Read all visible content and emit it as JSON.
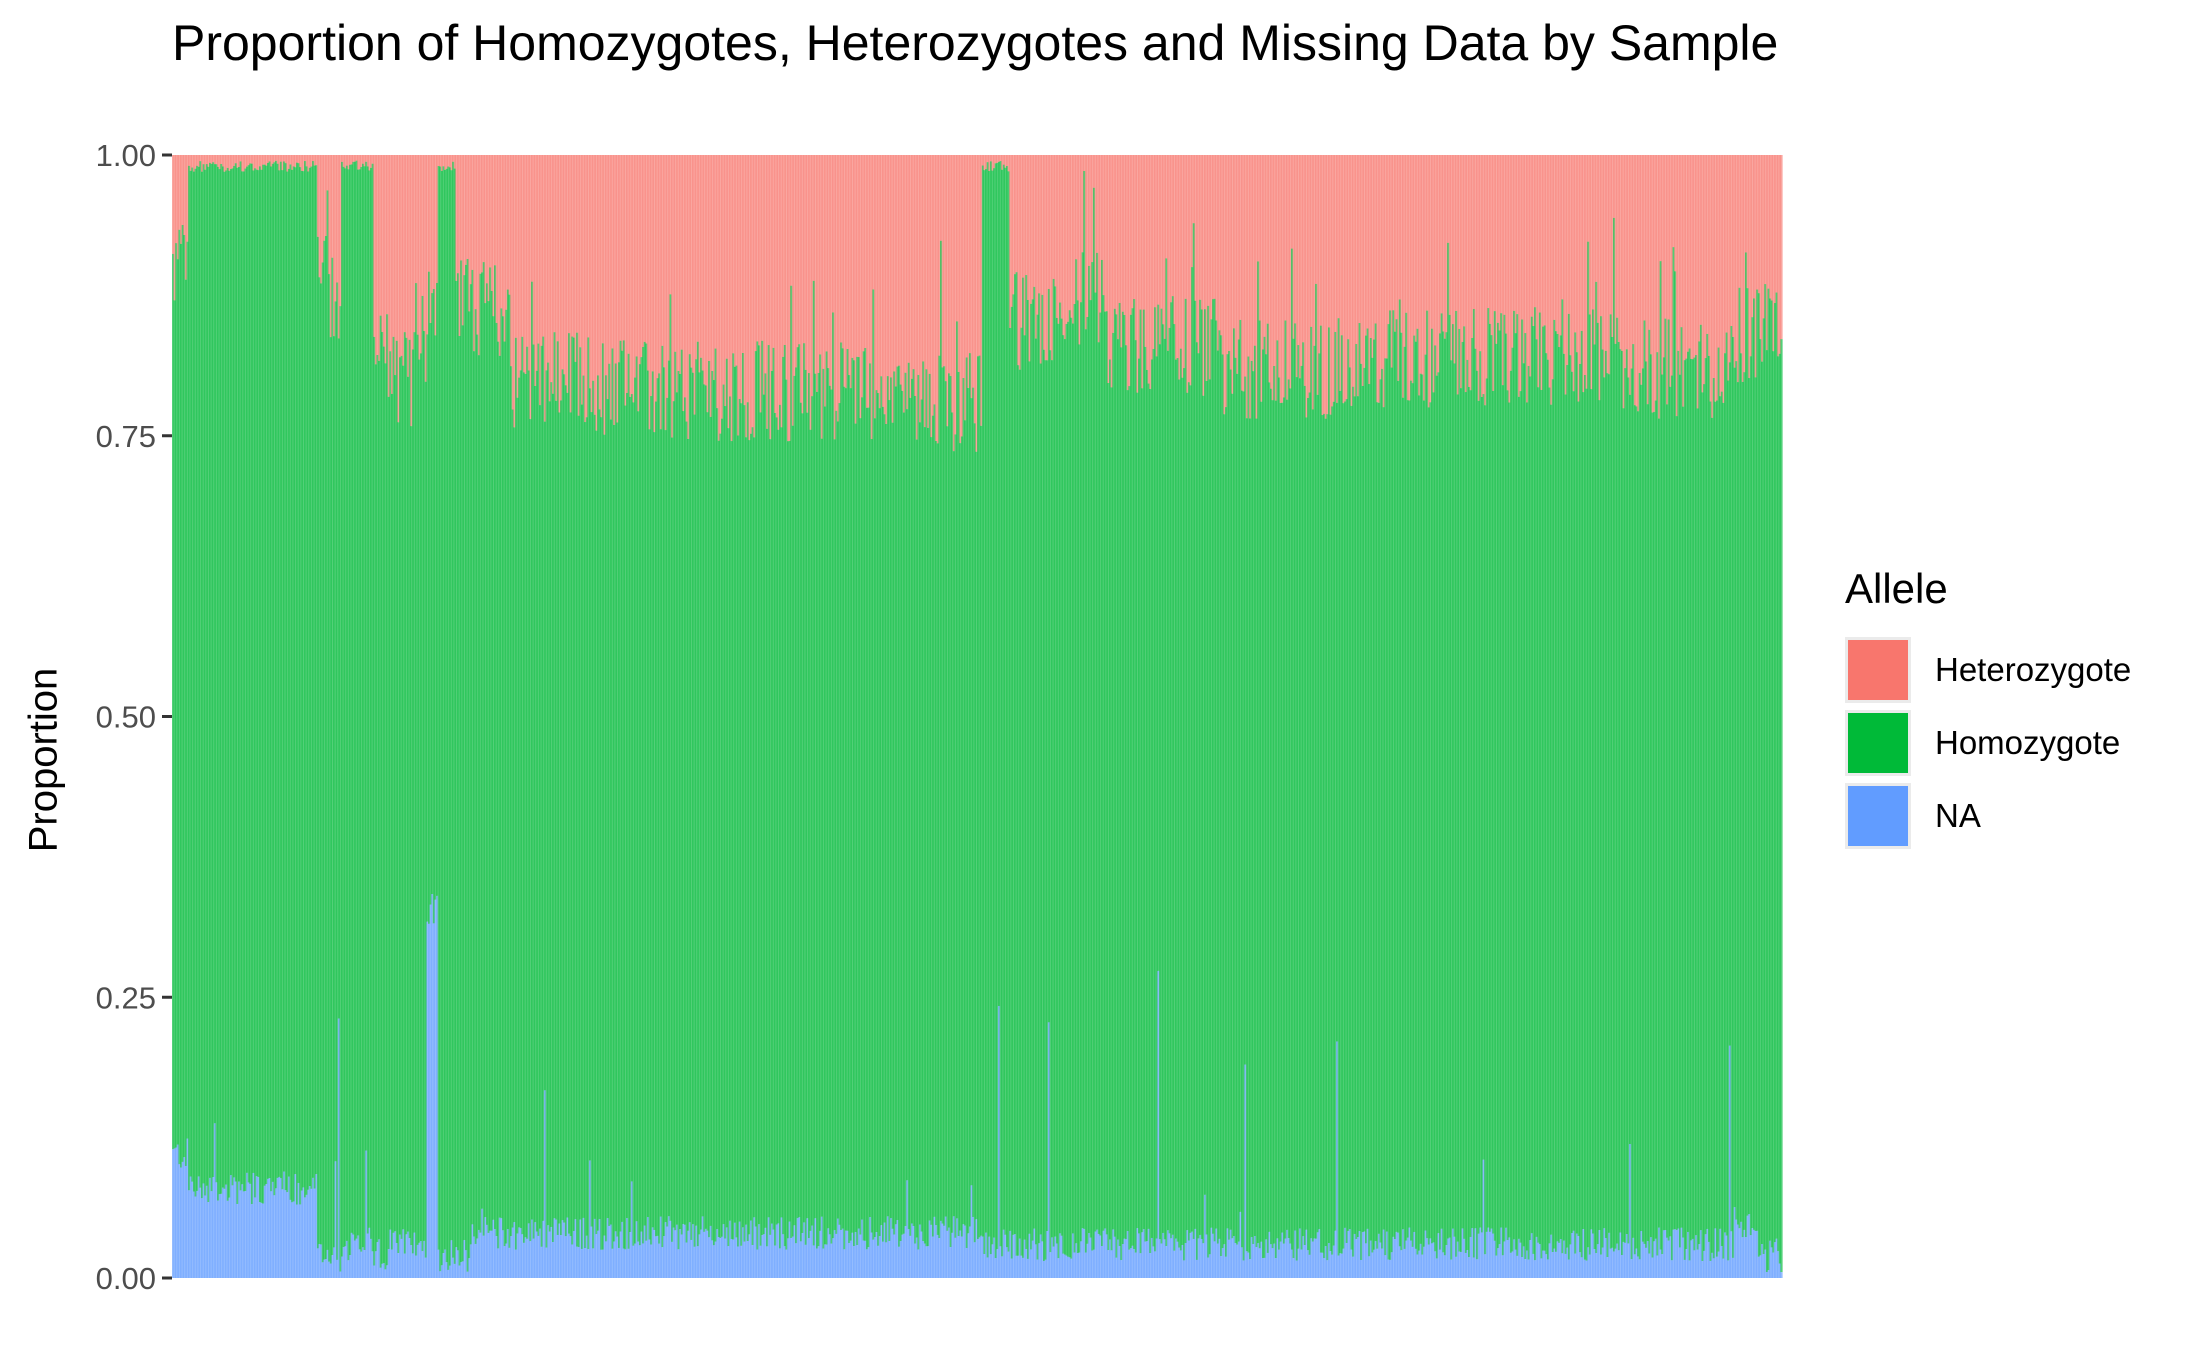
{
  "chart_data": {
    "type": "bar",
    "stacked": true,
    "title": "Proportion of Homozygotes, Heterozygotes and Missing Data by Sample",
    "xlabel": "",
    "ylabel": "Proportion",
    "ylim": [
      0,
      1
    ],
    "yticks": [
      "0.00",
      "0.25",
      "0.50",
      "0.75",
      "1.00"
    ],
    "x_tick_labels_visible": false,
    "grid": false,
    "legend": {
      "title": "Allele",
      "placement": "right",
      "entries": [
        {
          "name": "Heterozygote",
          "color": "#F8766D"
        },
        {
          "name": "Homozygote",
          "color": "#00BA38"
        },
        {
          "name": "NA",
          "color": "#619CFF"
        }
      ]
    },
    "sample_count_approx": 1000,
    "series_profile_note": "Per-sample stacked proportions summarized as segments over sample index range [0,1]; each segment gives [start, end, NA proportion, NA+Homozygote cumulative proportion]. Heterozygote fills to 1.0.",
    "segments": [
      [
        0.0,
        0.01,
        0.11,
        0.9
      ],
      [
        0.01,
        0.09,
        0.08,
        0.99
      ],
      [
        0.09,
        0.087,
        0.1,
        0.99
      ],
      [
        0.087,
        0.088,
        0.1,
        1.0
      ],
      [
        0.088,
        0.098,
        0.02,
        0.93
      ],
      [
        0.098,
        0.105,
        0.02,
        0.88
      ],
      [
        0.105,
        0.125,
        0.03,
        0.99
      ],
      [
        0.125,
        0.135,
        0.02,
        0.82
      ],
      [
        0.135,
        0.15,
        0.03,
        0.8
      ],
      [
        0.15,
        0.158,
        0.03,
        0.84
      ],
      [
        0.158,
        0.165,
        0.33,
        0.88
      ],
      [
        0.165,
        0.176,
        0.02,
        0.99
      ],
      [
        0.176,
        0.185,
        0.02,
        0.88
      ],
      [
        0.185,
        0.21,
        0.04,
        0.86
      ],
      [
        0.21,
        0.26,
        0.04,
        0.8
      ],
      [
        0.26,
        0.35,
        0.04,
        0.79
      ],
      [
        0.35,
        0.45,
        0.04,
        0.79
      ],
      [
        0.45,
        0.503,
        0.04,
        0.78
      ],
      [
        0.503,
        0.52,
        0.03,
        0.99
      ],
      [
        0.52,
        0.56,
        0.03,
        0.85
      ],
      [
        0.56,
        0.58,
        0.03,
        0.87
      ],
      [
        0.58,
        0.65,
        0.03,
        0.83
      ],
      [
        0.65,
        0.75,
        0.03,
        0.81
      ],
      [
        0.75,
        0.85,
        0.03,
        0.82
      ],
      [
        0.85,
        0.9,
        0.03,
        0.82
      ],
      [
        0.9,
        0.97,
        0.03,
        0.81
      ],
      [
        0.97,
        0.985,
        0.05,
        0.84
      ],
      [
        0.985,
        1.0,
        0.02,
        0.85
      ]
    ]
  }
}
